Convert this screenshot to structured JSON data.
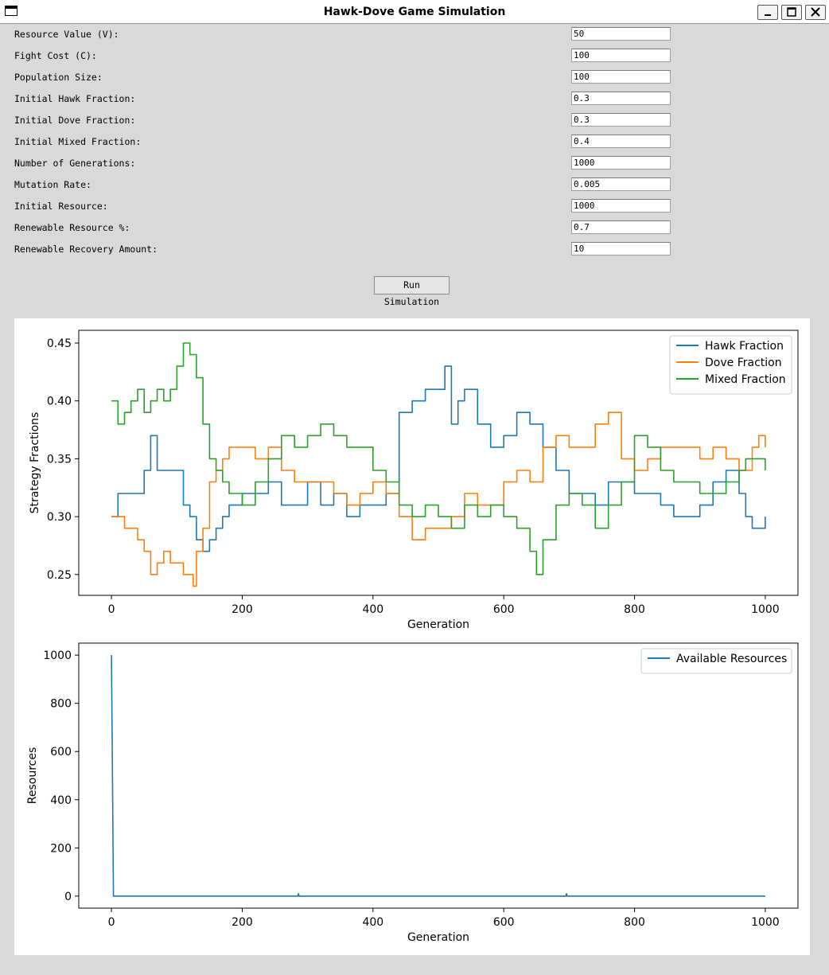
{
  "window": {
    "title": "Hawk-Dove Game Simulation"
  },
  "form": {
    "fields": [
      {
        "label": "Resource Value (V):",
        "value": "50"
      },
      {
        "label": "Fight Cost (C):",
        "value": "100"
      },
      {
        "label": "Population Size:",
        "value": "100"
      },
      {
        "label": "Initial Hawk Fraction:",
        "value": "0.3"
      },
      {
        "label": "Initial Dove Fraction:",
        "value": "0.3"
      },
      {
        "label": "Initial Mixed Fraction:",
        "value": "0.4"
      },
      {
        "label": "Number of Generations:",
        "value": "1000"
      },
      {
        "label": "Mutation Rate:",
        "value": "0.005"
      },
      {
        "label": "Initial Resource:",
        "value": "1000"
      },
      {
        "label": "Renewable Resource %:",
        "value": "0.7"
      },
      {
        "label": "Renewable Recovery Amount:",
        "value": "10"
      }
    ],
    "run_button": "Run Simulation"
  },
  "chart_data": [
    {
      "type": "line",
      "xlabel": "Generation",
      "ylabel": "Strategy Fractions",
      "xlim": [
        -50,
        1050
      ],
      "ylim": [
        0.232,
        0.461
      ],
      "xticks": [
        0,
        200,
        400,
        600,
        800,
        1000
      ],
      "yticks": [
        0.25,
        0.3,
        0.35,
        0.4,
        0.45
      ],
      "ytick_labels": [
        "0.25",
        "0.30",
        "0.35",
        "0.40",
        "0.45"
      ],
      "legend": "top-right",
      "series": [
        {
          "name": "Hawk Fraction",
          "color": "#1f77b4",
          "x": [
            0,
            10,
            20,
            40,
            50,
            60,
            70,
            80,
            100,
            110,
            120,
            130,
            140,
            150,
            160,
            170,
            180,
            200,
            220,
            240,
            260,
            280,
            300,
            320,
            340,
            360,
            380,
            400,
            420,
            440,
            460,
            480,
            500,
            510,
            520,
            530,
            540,
            560,
            580,
            600,
            620,
            640,
            660,
            680,
            700,
            720,
            740,
            760,
            780,
            800,
            820,
            840,
            860,
            880,
            900,
            920,
            940,
            960,
            970,
            980,
            990,
            1000
          ],
          "y": [
            0.3,
            0.32,
            0.32,
            0.32,
            0.34,
            0.37,
            0.34,
            0.34,
            0.34,
            0.31,
            0.3,
            0.28,
            0.27,
            0.28,
            0.29,
            0.3,
            0.31,
            0.32,
            0.32,
            0.33,
            0.31,
            0.31,
            0.33,
            0.31,
            0.32,
            0.3,
            0.31,
            0.31,
            0.32,
            0.39,
            0.4,
            0.41,
            0.41,
            0.43,
            0.38,
            0.4,
            0.41,
            0.38,
            0.36,
            0.37,
            0.39,
            0.38,
            0.36,
            0.34,
            0.32,
            0.32,
            0.31,
            0.33,
            0.33,
            0.32,
            0.32,
            0.31,
            0.3,
            0.3,
            0.31,
            0.33,
            0.34,
            0.32,
            0.3,
            0.29,
            0.29,
            0.3
          ]
        },
        {
          "name": "Dove Fraction",
          "color": "#ff7f0e",
          "x": [
            0,
            10,
            20,
            30,
            40,
            50,
            60,
            70,
            80,
            90,
            100,
            110,
            120,
            125,
            130,
            140,
            150,
            160,
            170,
            180,
            200,
            220,
            240,
            260,
            280,
            300,
            320,
            340,
            360,
            380,
            400,
            420,
            440,
            460,
            480,
            500,
            520,
            540,
            560,
            580,
            600,
            620,
            640,
            660,
            680,
            700,
            720,
            740,
            760,
            780,
            800,
            820,
            840,
            860,
            880,
            900,
            920,
            940,
            960,
            980,
            990,
            1000
          ],
          "y": [
            0.3,
            0.3,
            0.29,
            0.29,
            0.28,
            0.27,
            0.25,
            0.26,
            0.27,
            0.26,
            0.26,
            0.25,
            0.25,
            0.24,
            0.27,
            0.29,
            0.33,
            0.34,
            0.35,
            0.36,
            0.36,
            0.35,
            0.36,
            0.34,
            0.33,
            0.33,
            0.33,
            0.32,
            0.31,
            0.32,
            0.33,
            0.32,
            0.3,
            0.28,
            0.29,
            0.29,
            0.3,
            0.32,
            0.31,
            0.31,
            0.33,
            0.34,
            0.33,
            0.36,
            0.37,
            0.36,
            0.36,
            0.38,
            0.39,
            0.35,
            0.34,
            0.35,
            0.36,
            0.36,
            0.36,
            0.35,
            0.36,
            0.35,
            0.34,
            0.36,
            0.37,
            0.36
          ]
        },
        {
          "name": "Mixed Fraction",
          "color": "#2ca02c",
          "x": [
            0,
            10,
            20,
            30,
            40,
            50,
            60,
            70,
            80,
            90,
            100,
            110,
            120,
            130,
            140,
            150,
            160,
            170,
            180,
            200,
            220,
            240,
            260,
            280,
            300,
            320,
            340,
            360,
            380,
            400,
            420,
            440,
            460,
            480,
            500,
            520,
            540,
            560,
            580,
            600,
            620,
            640,
            650,
            660,
            680,
            700,
            720,
            740,
            760,
            780,
            800,
            820,
            840,
            860,
            880,
            900,
            920,
            940,
            960,
            970,
            980,
            1000
          ],
          "y": [
            0.4,
            0.38,
            0.39,
            0.4,
            0.41,
            0.39,
            0.4,
            0.41,
            0.4,
            0.41,
            0.43,
            0.45,
            0.44,
            0.42,
            0.38,
            0.35,
            0.34,
            0.33,
            0.32,
            0.31,
            0.33,
            0.35,
            0.37,
            0.36,
            0.37,
            0.38,
            0.37,
            0.36,
            0.36,
            0.34,
            0.33,
            0.31,
            0.3,
            0.31,
            0.3,
            0.29,
            0.31,
            0.3,
            0.31,
            0.3,
            0.29,
            0.27,
            0.25,
            0.28,
            0.31,
            0.32,
            0.31,
            0.29,
            0.31,
            0.33,
            0.37,
            0.36,
            0.34,
            0.33,
            0.33,
            0.32,
            0.32,
            0.33,
            0.34,
            0.35,
            0.35,
            0.34
          ]
        }
      ]
    },
    {
      "type": "line",
      "xlabel": "Generation",
      "ylabel": "Resources",
      "xlim": [
        -50,
        1050
      ],
      "ylim": [
        -50,
        1050
      ],
      "xticks": [
        0,
        200,
        400,
        600,
        800,
        1000
      ],
      "yticks": [
        0,
        200,
        400,
        600,
        800,
        1000
      ],
      "legend": "top-right",
      "series": [
        {
          "name": "Available Resources",
          "color": "#1f77b4",
          "x": [
            0,
            3,
            285,
            286,
            287,
            695,
            696,
            697,
            1000
          ],
          "y": [
            1000,
            0,
            0,
            10,
            0,
            0,
            10,
            0,
            0
          ]
        }
      ]
    }
  ]
}
